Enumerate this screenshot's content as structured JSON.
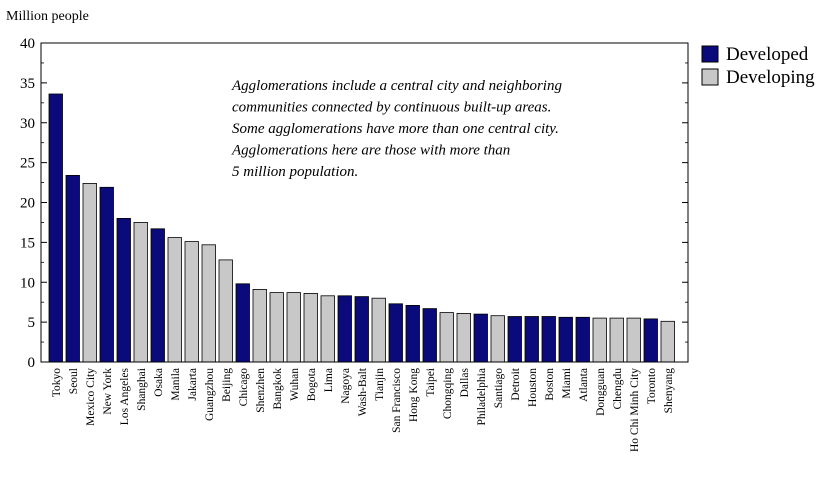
{
  "chart_data": {
    "type": "bar",
    "ylabel": "Million people",
    "ylim": [
      0,
      40
    ],
    "yticks": [
      0,
      5,
      10,
      15,
      20,
      25,
      30,
      35,
      40
    ],
    "grid": false,
    "legend_position": "top-right",
    "categories": [
      "Tokyo",
      "Seoul",
      "Mexico City",
      "New York",
      "Los Angeles",
      "Shanghai",
      "Osaka",
      "Manila",
      "Jakarta",
      "Guangzhou",
      "Beijing",
      "Chicago",
      "Shenzhen",
      "Bangkok",
      "Wuhan",
      "Bogota",
      "Lima",
      "Nagoya",
      "Wash-Balt",
      "Tianjin",
      "San Francisco",
      "Hong Kong",
      "Taipei",
      "Chongqing",
      "Dallas",
      "Philadelphia",
      "Santiago",
      "Detroit",
      "Houston",
      "Boston",
      "Miami",
      "Atlanta",
      "Dongguan",
      "Chengdu",
      "Ho Chi Minh City",
      "Toronto",
      "Shenyang"
    ],
    "values": [
      33.6,
      23.4,
      22.4,
      21.9,
      18.0,
      17.5,
      16.7,
      15.6,
      15.1,
      14.7,
      12.8,
      9.8,
      9.1,
      8.7,
      8.7,
      8.6,
      8.3,
      8.3,
      8.2,
      8.0,
      7.3,
      7.1,
      6.7,
      6.2,
      6.1,
      6.0,
      5.8,
      5.7,
      5.7,
      5.7,
      5.6,
      5.6,
      5.5,
      5.5,
      5.5,
      5.4,
      5.1
    ],
    "groups": [
      "Developed",
      "Developed",
      "Developing",
      "Developed",
      "Developed",
      "Developing",
      "Developed",
      "Developing",
      "Developing",
      "Developing",
      "Developing",
      "Developed",
      "Developing",
      "Developing",
      "Developing",
      "Developing",
      "Developing",
      "Developed",
      "Developed",
      "Developing",
      "Developed",
      "Developed",
      "Developed",
      "Developing",
      "Developing",
      "Developed",
      "Developing",
      "Developed",
      "Developed",
      "Developed",
      "Developed",
      "Developed",
      "Developing",
      "Developing",
      "Developing",
      "Developed",
      "Developing"
    ],
    "legend": [
      {
        "name": "Developed",
        "color": "#0a0a7a"
      },
      {
        "name": "Developing",
        "color": "#c8c8c8"
      }
    ],
    "annotation": [
      "Agglomerations include a central city and neighboring",
      "communities connected by continuous built-up areas.",
      "Some agglomerations have more than one central city.",
      "Agglomerations here are those with more than",
      "5 million population."
    ]
  }
}
